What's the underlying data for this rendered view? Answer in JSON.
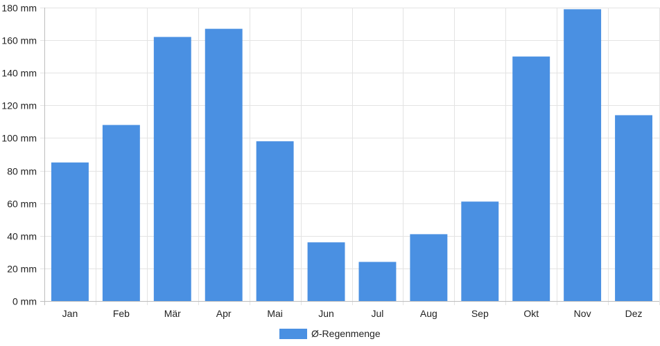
{
  "chart_data": {
    "type": "bar",
    "categories": [
      "Jan",
      "Feb",
      "Mär",
      "Apr",
      "Mai",
      "Jun",
      "Jul",
      "Aug",
      "Sep",
      "Okt",
      "Nov",
      "Dez"
    ],
    "series": [
      {
        "name": "Ø-Regenmenge",
        "values": [
          85,
          108,
          162,
          167,
          98,
          36,
          24,
          41,
          61,
          150,
          179,
          114
        ],
        "color": "#4a90e2"
      }
    ],
    "y_unit_suffix": " mm",
    "ylim": [
      0,
      180
    ],
    "y_ticks": [
      0,
      20,
      40,
      60,
      80,
      100,
      120,
      140,
      160,
      180
    ],
    "grid": true,
    "legend_position": "bottom",
    "title": "",
    "xlabel": "",
    "ylabel": ""
  }
}
